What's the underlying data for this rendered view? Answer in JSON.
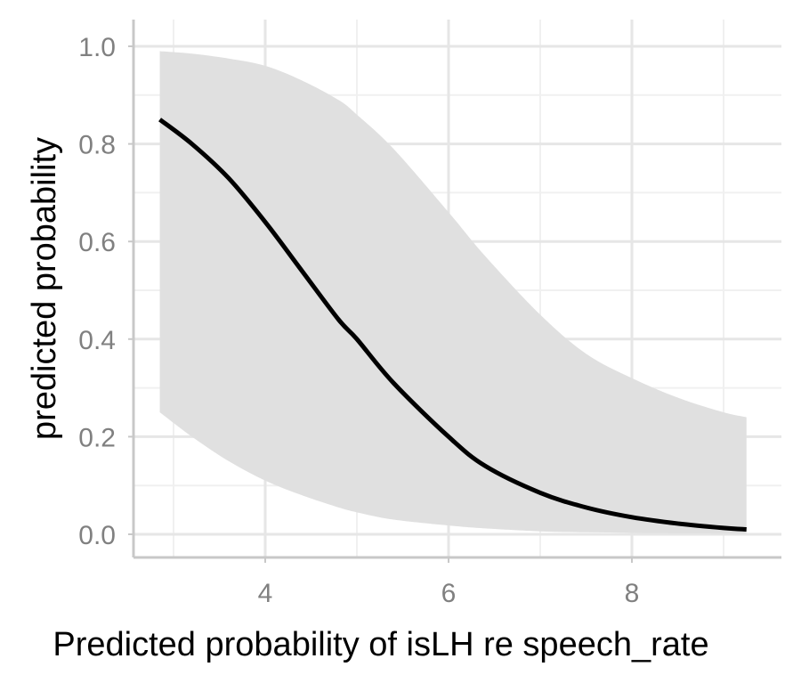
{
  "chart_data": {
    "type": "line",
    "title": "",
    "xlabel": "Predicted probability of isLH re speech_rate",
    "ylabel": "predicted probability",
    "xlim": [
      2.5,
      9.5
    ],
    "ylim": [
      -0.05,
      1.05
    ],
    "x_ticks": [
      4,
      6,
      8
    ],
    "x_tick_labels": [
      "4",
      "6",
      "8"
    ],
    "y_ticks": [
      0.0,
      0.2,
      0.4,
      0.6,
      0.8,
      1.0
    ],
    "y_tick_labels": [
      "0.0",
      "0.2",
      "0.4",
      "0.6",
      "0.8",
      "1.0"
    ],
    "grid": true,
    "legend": "none",
    "series": [
      {
        "x": [
          2.85,
          3.2,
          3.6,
          4.0,
          4.4,
          4.8,
          5.0,
          5.4,
          6.0,
          6.4,
          7.0,
          7.5,
          8.0,
          8.5,
          9.0,
          9.25
        ],
        "y": [
          0.85,
          0.8,
          0.73,
          0.64,
          0.54,
          0.44,
          0.4,
          0.31,
          0.2,
          0.14,
          0.085,
          0.055,
          0.035,
          0.022,
          0.013,
          0.01
        ],
        "lower": [
          0.25,
          0.2,
          0.15,
          0.11,
          0.08,
          0.055,
          0.045,
          0.03,
          0.018,
          0.012,
          0.006,
          0.004,
          0.003,
          0.002,
          0.0015,
          0.001
        ],
        "upper": [
          0.99,
          0.985,
          0.975,
          0.96,
          0.93,
          0.89,
          0.86,
          0.79,
          0.66,
          0.57,
          0.45,
          0.37,
          0.32,
          0.28,
          0.25,
          0.24
        ]
      }
    ],
    "colors": {
      "line": "#000000",
      "ribbon": "#e0e0e0",
      "grid_major": "#e6e6e6",
      "grid_minor": "#f0f0f0",
      "axis": "#c8c8c8",
      "tick_text": "#808080"
    }
  }
}
